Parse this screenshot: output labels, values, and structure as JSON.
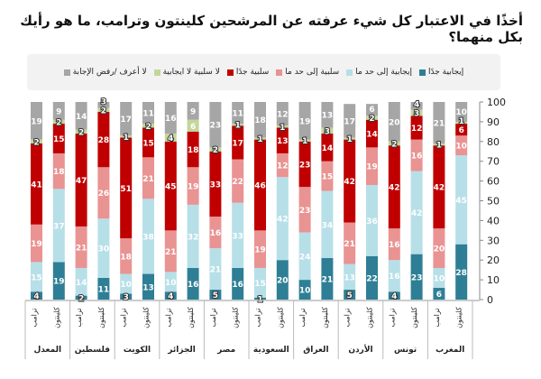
{
  "chart_data": {
    "type": "bar",
    "stacked": true,
    "title": "أخذًا في الاعتبار كل شيء عرفته عن المرشحين كلينتون وترامب، ما هو رأيك بكل منهما؟",
    "ylim": [
      0,
      100
    ],
    "yticks": [
      "0",
      "10",
      "20",
      "30",
      "40",
      "50",
      "60",
      "70",
      "80",
      "90",
      "100"
    ],
    "groups": [
      "المعدل",
      "فلسطين",
      "الكويت",
      "الجزائر",
      "مصر",
      "السعودية",
      "العراق",
      "الأردن",
      "تونس",
      "المغرب"
    ],
    "candidates": [
      "ترامب",
      "كلينتون"
    ],
    "series": [
      {
        "name": "إيجابية جدًا",
        "color": "#2e7f96"
      },
      {
        "name": "إيجابية إلى حد ما",
        "color": "#b7dfe8"
      },
      {
        "name": "سلبية إلى حد ما",
        "color": "#e99393"
      },
      {
        "name": "سلبية جدًا",
        "color": "#c00000"
      },
      {
        "name": "لا سلبية لا ايجابية",
        "color": "#c3d69b"
      },
      {
        "name": "لا أعرف /رفض الإجابة",
        "color": "#a6a6a6"
      }
    ],
    "bars": [
      [
        4,
        15,
        19,
        41,
        2,
        19
      ],
      [
        19,
        37,
        18,
        15,
        2,
        9
      ],
      [
        2,
        14,
        21,
        47,
        2,
        14
      ],
      [
        11,
        30,
        26,
        28,
        2,
        3
      ],
      [
        3,
        10,
        18,
        51,
        1,
        17
      ],
      [
        13,
        38,
        21,
        15,
        2,
        11
      ],
      [
        4,
        10,
        21,
        45,
        4,
        16
      ],
      [
        16,
        32,
        19,
        18,
        6,
        9
      ],
      [
        5,
        21,
        16,
        33,
        2,
        23
      ],
      [
        16,
        33,
        22,
        17,
        1,
        11
      ],
      [
        1,
        15,
        19,
        46,
        1,
        18
      ],
      [
        20,
        42,
        12,
        13,
        1,
        12
      ],
      [
        10,
        24,
        23,
        23,
        1,
        19
      ],
      [
        21,
        34,
        15,
        14,
        3,
        13
      ],
      [
        5,
        13,
        21,
        42,
        1,
        17
      ],
      [
        22,
        36,
        19,
        14,
        2,
        6
      ],
      [
        4,
        16,
        16,
        42,
        2,
        20
      ],
      [
        23,
        42,
        16,
        12,
        3,
        4
      ],
      [
        6,
        10,
        20,
        42,
        1,
        21
      ],
      [
        28,
        45,
        10,
        6,
        1,
        10
      ]
    ],
    "legend_position": "top"
  }
}
